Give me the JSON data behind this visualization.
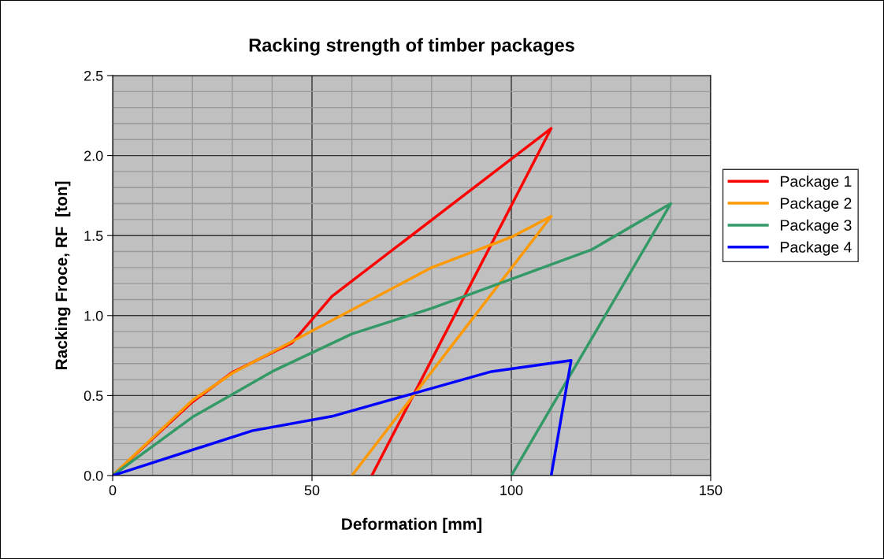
{
  "chart_data": {
    "type": "line",
    "title": "Racking strength of timber packages",
    "xlabel": "Deformation [mm]",
    "ylabel": "Racking Froce, RF  [ton]",
    "xlim": [
      0,
      150
    ],
    "xticks": [
      0,
      50,
      100,
      150
    ],
    "ylim": [
      0,
      2.5
    ],
    "yticks": [
      {
        "value": 0,
        "label": "0.0"
      },
      0.5,
      {
        "value": 1,
        "label": "1.0"
      },
      1.5,
      {
        "value": 2,
        "label": "2.0"
      },
      2.5
    ],
    "grid": true,
    "legend": "right",
    "marker": "none",
    "line_style": "solid",
    "series": [
      {
        "name": "Package 1",
        "color": "#ff0000",
        "x": [
          0,
          20,
          30,
          45,
          55,
          110,
          65
        ],
        "values": [
          0,
          0.46,
          0.645,
          0.83,
          1.12,
          2.17,
          0
        ]
      },
      {
        "name": "Package 2",
        "color": "#ff9900",
        "x": [
          0,
          20,
          30,
          80,
          100,
          110,
          60
        ],
        "values": [
          0,
          0.47,
          0.64,
          1.3,
          1.49,
          1.62,
          0
        ]
      },
      {
        "name": "Package 3",
        "color": "#339966",
        "x": [
          0,
          20,
          40,
          60,
          80,
          120,
          140,
          100
        ],
        "values": [
          0,
          0.365,
          0.65,
          0.885,
          1.045,
          1.41,
          1.7,
          0
        ]
      },
      {
        "name": "Package 4",
        "color": "#0000ff",
        "x": [
          0,
          35,
          55,
          95,
          115,
          110
        ],
        "values": [
          0,
          0.28,
          0.37,
          0.65,
          0.72,
          0
        ]
      }
    ]
  }
}
